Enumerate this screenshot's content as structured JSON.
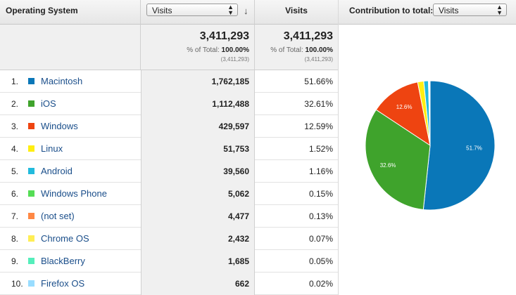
{
  "header": {
    "os_label": "Operating System",
    "metric_select": "Visits",
    "visits_label": "Visits",
    "contribution_label": "Contribution to total:",
    "contribution_select": "Visits"
  },
  "totals": {
    "visits": "3,411,293",
    "pct_prefix": "% of Total:",
    "pct_value": "100.00%",
    "abs": "(3,411,293)"
  },
  "rows": [
    {
      "num": "1.",
      "name": "Macintosh",
      "visits": "1,762,185",
      "pct": "51.66%",
      "color": "#0a77b8"
    },
    {
      "num": "2.",
      "name": "iOS",
      "visits": "1,112,488",
      "pct": "32.61%",
      "color": "#3fa32c"
    },
    {
      "num": "3.",
      "name": "Windows",
      "visits": "429,597",
      "pct": "12.59%",
      "color": "#ee4411"
    },
    {
      "num": "4.",
      "name": "Linux",
      "visits": "51,753",
      "pct": "1.52%",
      "color": "#ffee11"
    },
    {
      "num": "5.",
      "name": "Android",
      "visits": "39,560",
      "pct": "1.16%",
      "color": "#22bbdd"
    },
    {
      "num": "6.",
      "name": "Windows Phone",
      "visits": "5,062",
      "pct": "0.15%",
      "color": "#55dd55"
    },
    {
      "num": "7.",
      "name": "(not set)",
      "visits": "4,477",
      "pct": "0.13%",
      "color": "#ff8844"
    },
    {
      "num": "8.",
      "name": "Chrome OS",
      "visits": "2,432",
      "pct": "0.07%",
      "color": "#ffee55"
    },
    {
      "num": "9.",
      "name": "BlackBerry",
      "visits": "1,685",
      "pct": "0.05%",
      "color": "#55eebb"
    },
    {
      "num": "10.",
      "name": "Firefox OS",
      "visits": "662",
      "pct": "0.02%",
      "color": "#99ddff"
    }
  ],
  "chart_data": {
    "type": "pie",
    "categories": [
      "Macintosh",
      "iOS",
      "Windows",
      "Linux",
      "Android",
      "Windows Phone",
      "(not set)",
      "Chrome OS",
      "BlackBerry",
      "Firefox OS"
    ],
    "values": [
      51.66,
      32.61,
      12.59,
      1.52,
      1.16,
      0.15,
      0.13,
      0.07,
      0.05,
      0.02
    ],
    "colors": [
      "#0a77b8",
      "#3fa32c",
      "#ee4411",
      "#ffee11",
      "#22bbdd",
      "#55dd55",
      "#ff8844",
      "#ffee55",
      "#55eebb",
      "#99ddff"
    ],
    "slice_labels": [
      "51.7%",
      "32.6%",
      "12.6%",
      "",
      "",
      "",
      "",
      "",
      "",
      ""
    ]
  }
}
